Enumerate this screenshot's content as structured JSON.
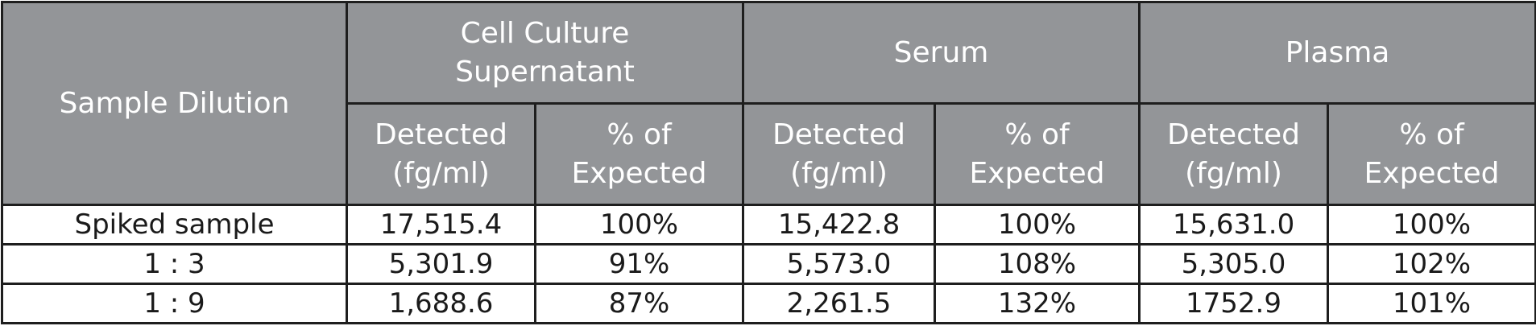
{
  "table": {
    "corner_header": "Sample Dilution",
    "groups": [
      "Cell Culture\nSupernatant",
      "Serum",
      "Plasma"
    ],
    "subheaders": [
      "Detected\n(fg/ml)",
      "% of\nExpected",
      "Detected\n(fg/ml)",
      "% of\nExpected",
      "Detected\n(fg/ml)",
      "% of\nExpected"
    ],
    "rows": [
      {
        "label": "Spiked sample",
        "cells": [
          "17,515.4",
          "100%",
          "15,422.8",
          "100%",
          "15,631.0",
          "100%"
        ]
      },
      {
        "label": "1 : 3",
        "cells": [
          "5,301.9",
          "91%",
          "5,573.0",
          "108%",
          "5,305.0",
          "102%"
        ]
      },
      {
        "label": "1 : 9",
        "cells": [
          "1,688.6",
          "87%",
          "2,261.5",
          "132%",
          "1752.9",
          "101%"
        ]
      }
    ]
  },
  "colors": {
    "header_bg": "#939598",
    "header_text": "#ffffff",
    "border": "#1e1e1e"
  }
}
